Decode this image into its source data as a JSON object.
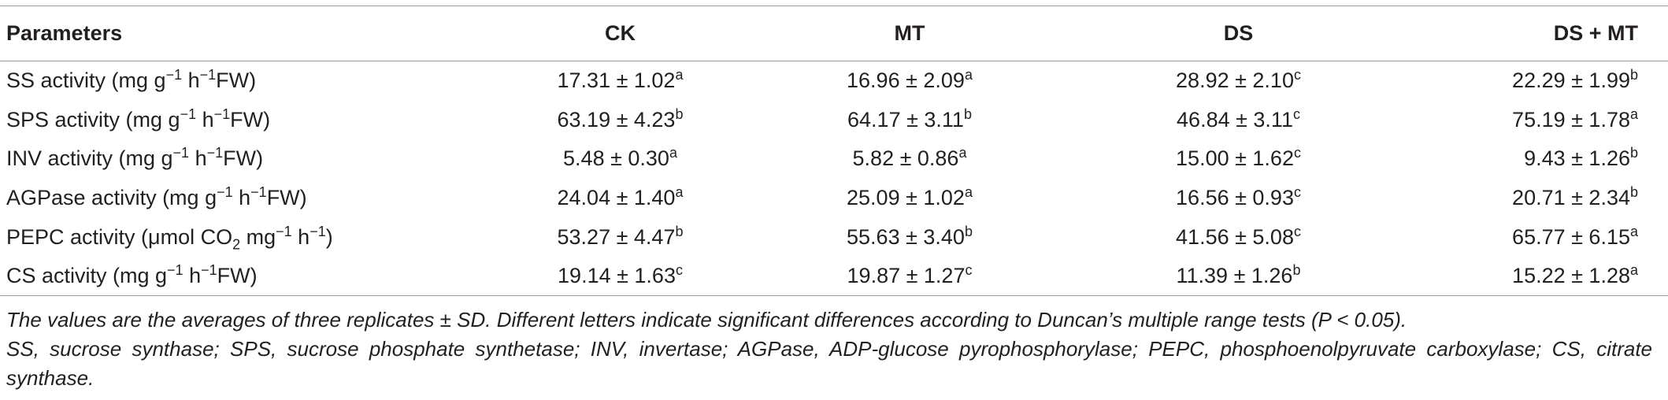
{
  "table": {
    "header": [
      "Parameters",
      "CK",
      "MT",
      "DS",
      "DS + MT"
    ],
    "rows": [
      {
        "label": [
          {
            "t": "SS activity (mg g"
          },
          {
            "sup": "−1"
          },
          {
            "t": " h"
          },
          {
            "sup": "−1"
          },
          {
            "t": "FW)"
          }
        ],
        "cells": [
          {
            "value": "17.31 ± 1.02",
            "letter": "a"
          },
          {
            "value": "16.96 ± 2.09",
            "letter": "a"
          },
          {
            "value": "28.92 ± 2.10",
            "letter": "c"
          },
          {
            "value": "22.29 ± 1.99",
            "letter": "b"
          }
        ]
      },
      {
        "label": [
          {
            "t": "SPS activity (mg g"
          },
          {
            "sup": "−1"
          },
          {
            "t": " h"
          },
          {
            "sup": "−1"
          },
          {
            "t": "FW)"
          }
        ],
        "cells": [
          {
            "value": "63.19 ± 4.23",
            "letter": "b"
          },
          {
            "value": "64.17 ± 3.11",
            "letter": "b"
          },
          {
            "value": "46.84 ± 3.11",
            "letter": "c"
          },
          {
            "value": "75.19 ± 1.78",
            "letter": "a"
          }
        ]
      },
      {
        "label": [
          {
            "t": "INV activity (mg g"
          },
          {
            "sup": "−1"
          },
          {
            "t": " h"
          },
          {
            "sup": "−1"
          },
          {
            "t": "FW)"
          }
        ],
        "cells": [
          {
            "value": "5.48 ± 0.30",
            "letter": "a"
          },
          {
            "value": "5.82 ± 0.86",
            "letter": "a"
          },
          {
            "value": "15.00 ± 1.62",
            "letter": "c"
          },
          {
            "value": "9.43 ± 1.26",
            "letter": "b"
          }
        ]
      },
      {
        "label": [
          {
            "t": "AGPase activity (mg g"
          },
          {
            "sup": "−1"
          },
          {
            "t": " h"
          },
          {
            "sup": "−1"
          },
          {
            "t": "FW)"
          }
        ],
        "cells": [
          {
            "value": "24.04 ± 1.40",
            "letter": "a"
          },
          {
            "value": "25.09 ± 1.02",
            "letter": "a"
          },
          {
            "value": "16.56 ± 0.93",
            "letter": "c"
          },
          {
            "value": "20.71 ± 2.34",
            "letter": "b"
          }
        ]
      },
      {
        "label": [
          {
            "t": "PEPC activity (μmol CO"
          },
          {
            "sub": "2"
          },
          {
            "t": " mg"
          },
          {
            "sup": "−1"
          },
          {
            "t": " h"
          },
          {
            "sup": "−1"
          },
          {
            "t": ")"
          }
        ],
        "cells": [
          {
            "value": "53.27 ± 4.47",
            "letter": "b"
          },
          {
            "value": "55.63 ± 3.40",
            "letter": "b"
          },
          {
            "value": "41.56 ± 5.08",
            "letter": "c"
          },
          {
            "value": "65.77 ± 6.15",
            "letter": "a"
          }
        ]
      },
      {
        "label": [
          {
            "t": "CS activity (mg g"
          },
          {
            "sup": "−1"
          },
          {
            "t": " h"
          },
          {
            "sup": "−1"
          },
          {
            "t": "FW)"
          }
        ],
        "cells": [
          {
            "value": "19.14 ± 1.63",
            "letter": "c"
          },
          {
            "value": "19.87 ± 1.27",
            "letter": "c"
          },
          {
            "value": "11.39 ± 1.26",
            "letter": "b"
          },
          {
            "value": "15.22 ± 1.28",
            "letter": "a"
          }
        ]
      }
    ]
  },
  "notes": [
    "The values are the averages of three replicates ± SD. Different letters indicate significant differences according to Duncan’s multiple range tests (P < 0.05).",
    "SS, sucrose synthase; SPS, sucrose phosphate synthetase; INV, invertase; AGPase, ADP-glucose pyrophosphorylase; PEPC, phosphoenolpyruvate carboxylase; CS, citrate synthase."
  ]
}
